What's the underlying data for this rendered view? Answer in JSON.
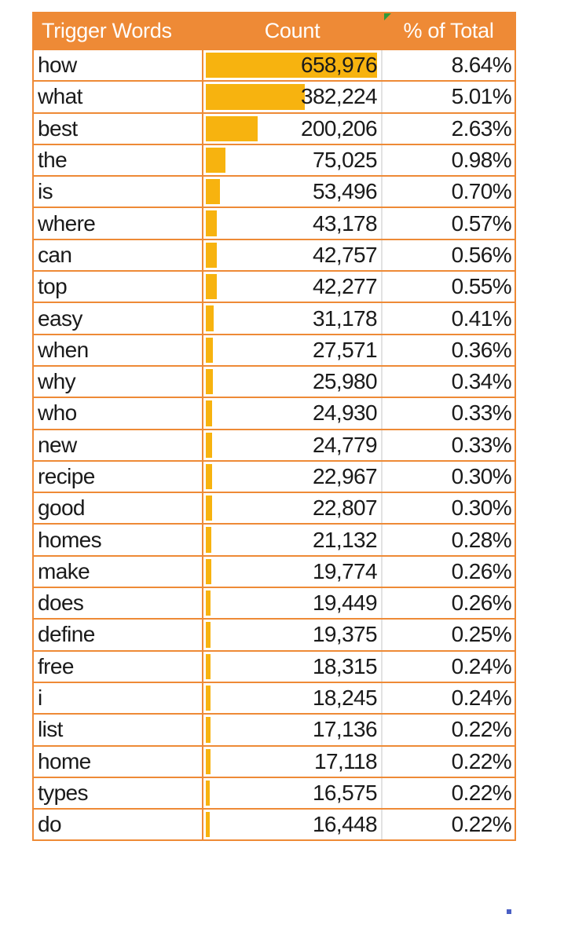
{
  "colors": {
    "header_bg": "#ee8a36",
    "border": "#ee8a36",
    "bar": "#f7b30f"
  },
  "header": {
    "word": "Trigger Words",
    "count": "Count",
    "pct": "% of Total"
  },
  "chart_data": {
    "type": "table",
    "columns": [
      "Trigger Words",
      "Count",
      "% of Total"
    ],
    "data_bars_on": "Count",
    "rows": [
      {
        "word": "how",
        "count": 658976,
        "count_label": "658,976",
        "pct": "8.64%"
      },
      {
        "word": "what",
        "count": 382224,
        "count_label": "382,224",
        "pct": "5.01%"
      },
      {
        "word": "best",
        "count": 200206,
        "count_label": "200,206",
        "pct": "2.63%"
      },
      {
        "word": "the",
        "count": 75025,
        "count_label": "75,025",
        "pct": "0.98%"
      },
      {
        "word": "is",
        "count": 53496,
        "count_label": "53,496",
        "pct": "0.70%"
      },
      {
        "word": "where",
        "count": 43178,
        "count_label": "43,178",
        "pct": "0.57%"
      },
      {
        "word": "can",
        "count": 42757,
        "count_label": "42,757",
        "pct": "0.56%"
      },
      {
        "word": "top",
        "count": 42277,
        "count_label": "42,277",
        "pct": "0.55%"
      },
      {
        "word": "easy",
        "count": 31178,
        "count_label": "31,178",
        "pct": "0.41%"
      },
      {
        "word": "when",
        "count": 27571,
        "count_label": "27,571",
        "pct": "0.36%"
      },
      {
        "word": "why",
        "count": 25980,
        "count_label": "25,980",
        "pct": "0.34%"
      },
      {
        "word": "who",
        "count": 24930,
        "count_label": "24,930",
        "pct": "0.33%"
      },
      {
        "word": "new",
        "count": 24779,
        "count_label": "24,779",
        "pct": "0.33%"
      },
      {
        "word": "recipe",
        "count": 22967,
        "count_label": "22,967",
        "pct": "0.30%"
      },
      {
        "word": "good",
        "count": 22807,
        "count_label": "22,807",
        "pct": "0.30%"
      },
      {
        "word": "homes",
        "count": 21132,
        "count_label": "21,132",
        "pct": "0.28%"
      },
      {
        "word": "make",
        "count": 19774,
        "count_label": "19,774",
        "pct": "0.26%"
      },
      {
        "word": "does",
        "count": 19449,
        "count_label": "19,449",
        "pct": "0.26%"
      },
      {
        "word": "define",
        "count": 19375,
        "count_label": "19,375",
        "pct": "0.25%"
      },
      {
        "word": "free",
        "count": 18315,
        "count_label": "18,315",
        "pct": "0.24%"
      },
      {
        "word": "i",
        "count": 18245,
        "count_label": "18,245",
        "pct": "0.24%"
      },
      {
        "word": "list",
        "count": 17136,
        "count_label": "17,136",
        "pct": "0.22%"
      },
      {
        "word": "home",
        "count": 17118,
        "count_label": "17,118",
        "pct": "0.22%"
      },
      {
        "word": "types",
        "count": 16575,
        "count_label": "16,575",
        "pct": "0.22%"
      },
      {
        "word": "do",
        "count": 16448,
        "count_label": "16,448",
        "pct": "0.22%"
      }
    ]
  }
}
